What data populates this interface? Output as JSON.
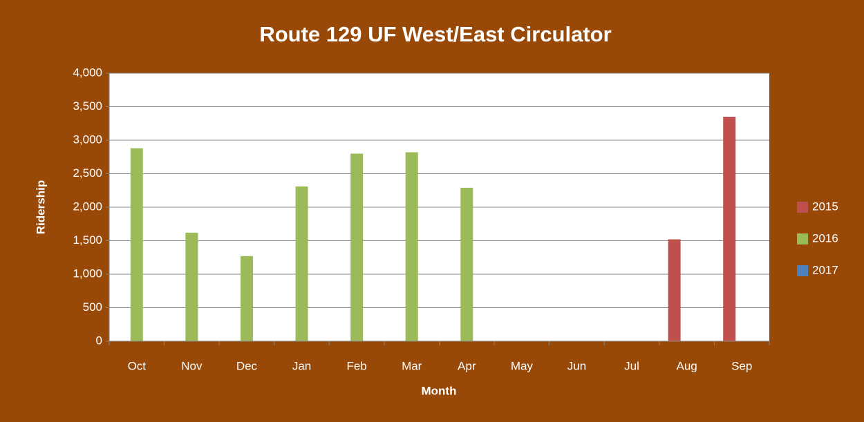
{
  "chart_data": {
    "type": "bar",
    "title": "Route 129 UF West/East Circulator",
    "xlabel": "Month",
    "ylabel": "Ridership",
    "categories": [
      "Oct",
      "Nov",
      "Dec",
      "Jan",
      "Feb",
      "Mar",
      "Apr",
      "May",
      "Jun",
      "Jul",
      "Aug",
      "Sep"
    ],
    "series": [
      {
        "name": "2015",
        "color": "#c0504d",
        "values": [
          null,
          null,
          null,
          null,
          null,
          null,
          null,
          null,
          null,
          null,
          1520,
          3350
        ]
      },
      {
        "name": "2016",
        "color": "#9bbb59",
        "values": [
          2880,
          1620,
          1270,
          2310,
          2800,
          2820,
          2290,
          null,
          null,
          null,
          null,
          null
        ]
      },
      {
        "name": "2017",
        "color": "#4f81bd",
        "values": [
          null,
          null,
          null,
          null,
          null,
          null,
          null,
          null,
          null,
          null,
          null,
          null
        ]
      }
    ],
    "ylim": [
      0,
      4000
    ],
    "yticks": [
      0,
      500,
      {
        "value": 1000,
        "label": "1,000"
      },
      {
        "value": 1500,
        "label": "1,500"
      },
      {
        "value": 2000,
        "label": "2,000"
      },
      {
        "value": 2500,
        "label": "2,500"
      },
      {
        "value": 3000,
        "label": "3,000"
      },
      {
        "value": 3500,
        "label": "3,500"
      },
      {
        "value": 4000,
        "label": "4,000"
      }
    ],
    "grid": true,
    "legend": "right"
  }
}
